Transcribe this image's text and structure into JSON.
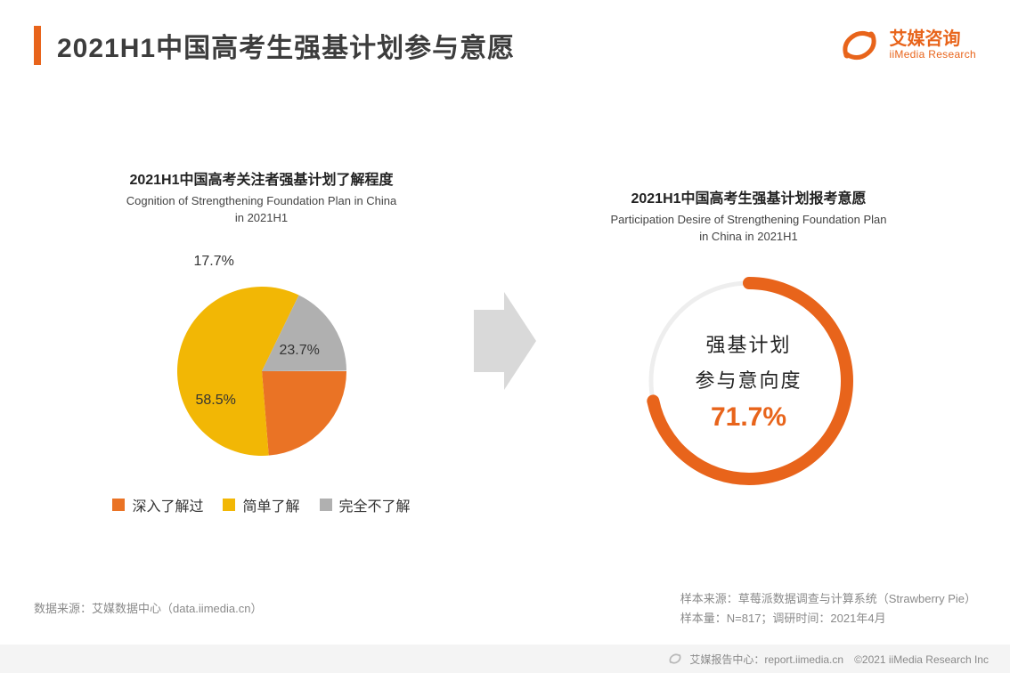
{
  "header": {
    "title": "2021H1中国高考生强基计划参与意愿",
    "logo_cn": "艾媒咨询",
    "logo_en": "iiMedia Research",
    "accent_color": "#e8641b"
  },
  "left_chart": {
    "type": "pie",
    "title_cn": "2021H1中国高考关注者强基计划了解程度",
    "title_en_line1": "Cognition of Strengthening Foundation Plan in China",
    "title_en_line2": "in 2021H1",
    "slices": [
      {
        "label": "深入了解过",
        "value": 23.7,
        "display": "23.7%",
        "color": "#ea7325"
      },
      {
        "label": "简单了解",
        "value": 58.5,
        "display": "58.5%",
        "color": "#f2b705"
      },
      {
        "label": "完全不了解",
        "value": 17.7,
        "display": "17.7%",
        "color": "#b0b0b0"
      }
    ],
    "radius": 95,
    "label_fontsize": 16,
    "legend_fontsize": 16,
    "background": "#ffffff"
  },
  "arrow": {
    "color": "#d9d9d9"
  },
  "right_chart": {
    "type": "gauge-ring",
    "title_cn": "2021H1中国高考生强基计划报考意愿",
    "title_en_line1": "Participation Desire of Strengthening Foundation Plan",
    "title_en_line2": "in China in 2021H1",
    "center_line1": "强基计划",
    "center_line2": "参与意向度",
    "value": 71.7,
    "value_display": "71.7%",
    "ring_color": "#e8641b",
    "track_color": "#eeeeee",
    "ring_thickness": 14,
    "ring_radius": 110,
    "value_color": "#e8641b",
    "center_fontsize": 22,
    "value_fontsize": 30
  },
  "footer": {
    "left": "数据来源：艾媒数据中心（data.iimedia.cn）",
    "right_line1": "样本来源：草莓派数据调查与计算系统（Strawberry Pie）",
    "right_line2": "样本量：N=817；调研时间：2021年4月",
    "bottom": "艾媒报告中心：report.iimedia.cn　©2021 iiMedia Research Inc"
  },
  "colors": {
    "text_primary": "#3d3d3d",
    "text_muted": "#8a8a8a",
    "footer_bg": "#f4f4f4"
  }
}
